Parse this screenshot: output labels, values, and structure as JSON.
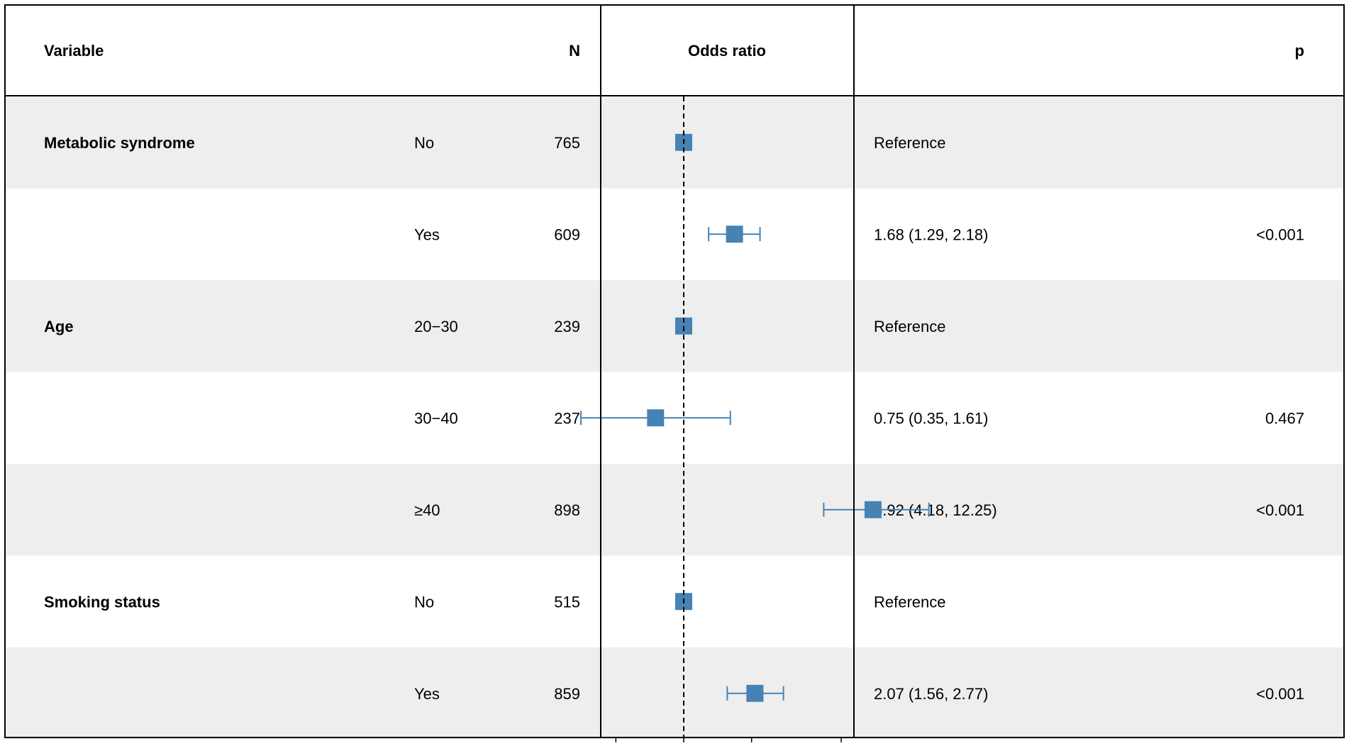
{
  "headers": {
    "variable": "Variable",
    "n": "N",
    "odds_ratio": "Odds ratio",
    "p": "p"
  },
  "chart_data": {
    "type": "forest",
    "title": "",
    "xlabel": "Odds ratio",
    "xscale": "log",
    "xlim": [
      0.3,
      13
    ],
    "reference_line": 1,
    "x_ticks": [
      0.5,
      1,
      2,
      5,
      10
    ],
    "x_tick_labels": [
      "",
      "",
      "",
      "",
      ""
    ],
    "marker_color": "#4682b4",
    "stripe_color": "#eeeeee",
    "rows": [
      {
        "variable": "Metabolic syndrome",
        "level": "No",
        "n": "765",
        "or": 1.0,
        "lower": null,
        "upper": null,
        "estimate_text": "Reference",
        "p": ""
      },
      {
        "variable": "",
        "level": "Yes",
        "n": "609",
        "or": 1.68,
        "lower": 1.29,
        "upper": 2.18,
        "estimate_text": "1.68 (1.29, 2.18)",
        "p": "<0.001"
      },
      {
        "variable": "Age",
        "level": "20−30",
        "n": "239",
        "or": 1.0,
        "lower": null,
        "upper": null,
        "estimate_text": "Reference",
        "p": ""
      },
      {
        "variable": "",
        "level": "30−40",
        "n": "237",
        "or": 0.75,
        "lower": 0.35,
        "upper": 1.61,
        "estimate_text": "0.75 (0.35, 1.61)",
        "p": "0.467"
      },
      {
        "variable": "",
        "level": "≥40",
        "n": "898",
        "or": 6.92,
        "lower": 4.18,
        "upper": 12.25,
        "estimate_text": "6.92 (4.18, 12.25)",
        "p": "<0.001"
      },
      {
        "variable": "Smoking status",
        "level": "No",
        "n": "515",
        "or": 1.0,
        "lower": null,
        "upper": null,
        "estimate_text": "Reference",
        "p": ""
      },
      {
        "variable": "",
        "level": "Yes",
        "n": "859",
        "or": 2.07,
        "lower": 1.56,
        "upper": 2.77,
        "estimate_text": "2.07 (1.56, 2.77)",
        "p": "<0.001"
      }
    ]
  }
}
